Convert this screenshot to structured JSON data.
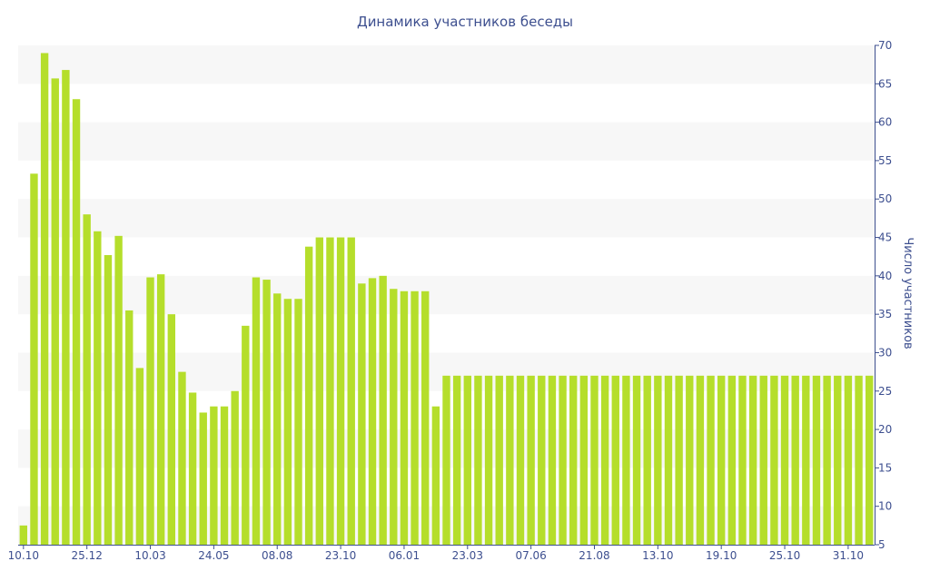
{
  "chart_data": {
    "type": "bar",
    "title": "Динамика участников беседы",
    "xlabel": "",
    "ylabel": "Число участников",
    "ylim": [
      5,
      70
    ],
    "y_ticks": [
      5,
      10,
      15,
      20,
      25,
      30,
      35,
      40,
      45,
      50,
      55,
      60,
      65,
      70
    ],
    "y_axis_position": "right",
    "grid": "alternating horizontal bands",
    "x_tick_labels": [
      {
        "index": 0,
        "label": "10.10"
      },
      {
        "index": 6,
        "label": "25.12"
      },
      {
        "index": 12,
        "label": "10.03"
      },
      {
        "index": 18,
        "label": "24.05"
      },
      {
        "index": 24,
        "label": "08.08"
      },
      {
        "index": 30,
        "label": "23.10"
      },
      {
        "index": 36,
        "label": "06.01"
      },
      {
        "index": 42,
        "label": "23.03"
      },
      {
        "index": 48,
        "label": "07.06"
      },
      {
        "index": 54,
        "label": "21.08"
      },
      {
        "index": 60,
        "label": "13.10"
      },
      {
        "index": 66,
        "label": "19.10"
      },
      {
        "index": 72,
        "label": "25.10"
      },
      {
        "index": 78,
        "label": "31.10"
      }
    ],
    "values": [
      7.5,
      53.3,
      69,
      65.7,
      66.8,
      63,
      48,
      45.8,
      42.7,
      45.2,
      35.5,
      28,
      39.8,
      40.2,
      35,
      27.5,
      24.8,
      22.2,
      23,
      23,
      25,
      33.5,
      39.8,
      39.5,
      37.7,
      37,
      37,
      43.8,
      45,
      45,
      45,
      45,
      39,
      39.7,
      40,
      38.3,
      38,
      38,
      38,
      23,
      27,
      27,
      27,
      27,
      27,
      27,
      27,
      27,
      27,
      27,
      27,
      27,
      27,
      27,
      27,
      27,
      27,
      27,
      27,
      27,
      27,
      27,
      27,
      27,
      27,
      27,
      27,
      27,
      27,
      27,
      27,
      27,
      27,
      27,
      27,
      27,
      27,
      27,
      27,
      27,
      27
    ],
    "colors": {
      "bar": "#b5de2b",
      "band": "#f7f7f7",
      "text": "#3d4f8f",
      "axis": "#3d4f8f"
    }
  }
}
